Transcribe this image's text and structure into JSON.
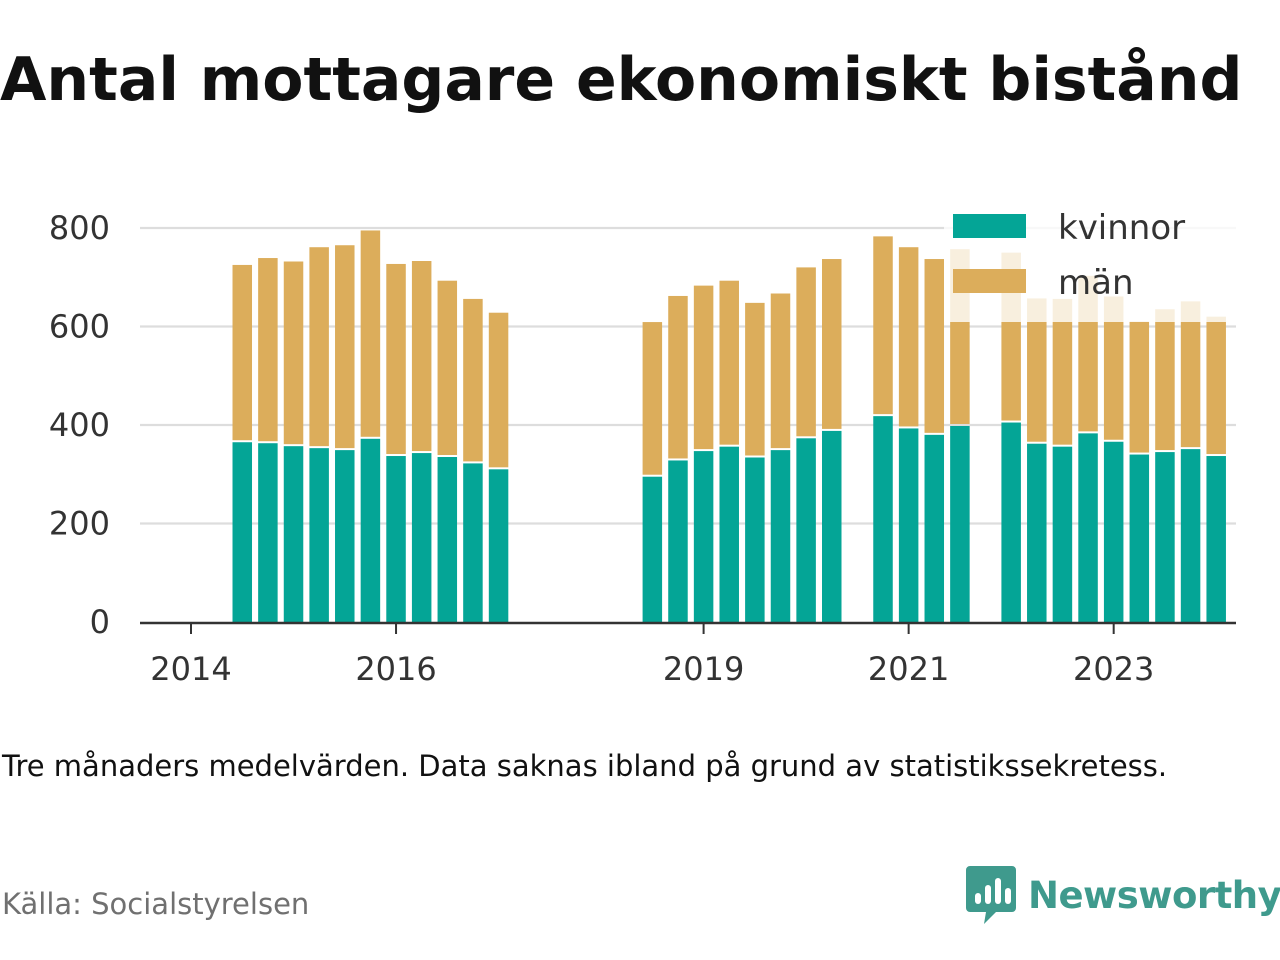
{
  "title": "Antal mottagare ekonomiskt bistånd",
  "caption": "Tre månaders medelvärden. Data saknas ibland på grund av statistikssekretess.",
  "source": "Källa: Socialstyrelsen",
  "logo_text": "Newsworthy",
  "colors": {
    "kvinnor": "#04a596",
    "man": "#dcad5b",
    "grid": "#dddddd",
    "axis": "#333333",
    "logo": "#3f9a8d"
  },
  "chart_data": {
    "type": "bar",
    "stacked": true,
    "ylim": [
      0,
      800
    ],
    "yticks": [
      0,
      200,
      400,
      600,
      800
    ],
    "xticks": [
      "2014",
      "2016",
      "2019",
      "2021",
      "2023"
    ],
    "legend": {
      "position": "top-right"
    },
    "categories": [
      "2014 Q2",
      "2014 Q3",
      "2014 Q4",
      "2015 Q1",
      "2015 Q2",
      "2015 Q3",
      "2015 Q4",
      "2016 Q1",
      "2016 Q2",
      "2016 Q3",
      "2016 Q4",
      "2018 Q2",
      "2018 Q3",
      "2018 Q4",
      "2019 Q1",
      "2019 Q2",
      "2019 Q3",
      "2019 Q4",
      "2020 Q1",
      "2020 Q3",
      "2020 Q4",
      "2021 Q1",
      "2021 Q2",
      "2021 Q4",
      "2022 Q1",
      "2022 Q2",
      "2022 Q3",
      "2022 Q4",
      "2023 Q1",
      "2023 Q2",
      "2023 Q3",
      "2023 Q4"
    ],
    "series": [
      {
        "name": "kvinnor",
        "values": [
          365,
          363,
          357,
          353,
          349,
          372,
          337,
          343,
          335,
          322,
          310,
          295,
          328,
          347,
          356,
          334,
          349,
          373,
          388,
          418,
          393,
          380,
          398,
          405,
          362,
          356,
          383,
          366,
          340,
          345,
          351,
          337
        ]
      },
      {
        "name": "män",
        "values": [
          360,
          376,
          375,
          408,
          416,
          423,
          390,
          390,
          358,
          334,
          318,
          314,
          334,
          336,
          337,
          314,
          318,
          347,
          349,
          365,
          368,
          357,
          359,
          345,
          295,
          300,
          320,
          295,
          270,
          290,
          300,
          283
        ]
      }
    ]
  }
}
